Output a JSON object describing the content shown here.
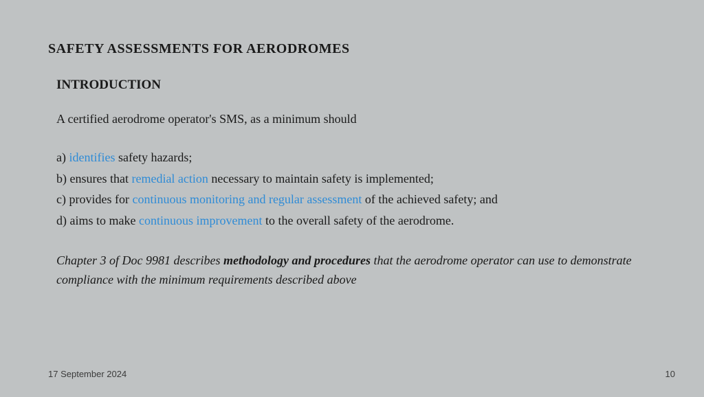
{
  "colors": {
    "background": "#bfc2c3",
    "text": "#1a1a1a",
    "highlight": "#2e8bd6",
    "footer_text": "#3b3b3b"
  },
  "typography": {
    "title_fontsize": 20,
    "subtitle_fontsize": 19,
    "body_fontsize": 18,
    "footer_fontsize": 13,
    "body_font": "Georgia",
    "footer_font": "Arial"
  },
  "slide": {
    "title": "SAFETY ASSESSMENTS FOR  AERODROMES",
    "subtitle": "INTRODUCTION",
    "intro": "A certified aerodrome operator's  SMS, as a minimum should",
    "points": {
      "a_pre": "a) ",
      "a_hl": "identifies",
      "a_post": " safety hazards;",
      "b_pre": "b) ensures that ",
      "b_hl": "remedial action",
      "b_post": " necessary to maintain safety is implemented;",
      "c_pre": "c) provides for ",
      "c_hl": "continuous monitoring and regular assessment",
      "c_post": " of the achieved safety; and",
      "d_pre": "d) aims to make ",
      "d_hl": "continuous improvement",
      "d_post": " to the overall safety of the aerodrome."
    },
    "note": {
      "pre": "Chapter 3 of Doc 9981 describes ",
      "bold": "methodology and procedures",
      "post": " that the aerodrome operator can use to demonstrate compliance with the minimum requirements described above"
    }
  },
  "footer": {
    "date": "17 September 2024",
    "page": "10"
  }
}
